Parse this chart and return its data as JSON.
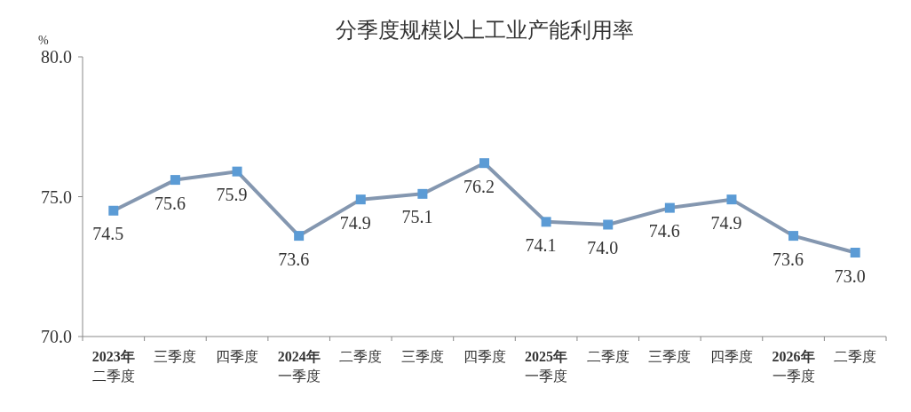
{
  "chart_data": {
    "type": "line",
    "title": "分季度规模以上工业产能利用率",
    "ylabel": "%",
    "categories": [
      "2023年二季度",
      "三季度",
      "四季度",
      "2024年一季度",
      "二季度",
      "三季度",
      "四季度",
      "2025年一季度",
      "二季度",
      "三季度",
      "四季度",
      "2026年一季度",
      "二季度"
    ],
    "series": [
      {
        "color": "#8497b0",
        "values": [
          74.5,
          75.6,
          75.9,
          73.6,
          74.9,
          75.1,
          76.2,
          74.1,
          74.0,
          74.6,
          74.9,
          73.6,
          73.0
        ],
        "colors": [
          "#5b9bd5",
          "#5b9bd5",
          "#5b9bd5",
          "#5b9bd5",
          "#5b9bd5",
          "#5b9bd5",
          "#5b9bd5",
          "#5b9bd5",
          "#5b9bd5",
          "#5b9bd5",
          "#5b9bd5",
          "#5b9bd5",
          "#5b9bd5"
        ],
        "value_labels": [
          "74.5",
          "75.6",
          "75.9",
          "73.6",
          "74.9",
          "75.1",
          "76.2",
          "74.1",
          "74.0",
          "74.6",
          "74.9",
          "73.6",
          "73.0"
        ]
      }
    ],
    "marker": "square",
    "ylim": [
      70,
      80
    ],
    "yticks": [
      {
        "value": 70,
        "label": "70.0"
      },
      {
        "value": 75,
        "label": "75.0"
      },
      {
        "value": 80,
        "label": "80.0"
      }
    ],
    "grid": false
  }
}
